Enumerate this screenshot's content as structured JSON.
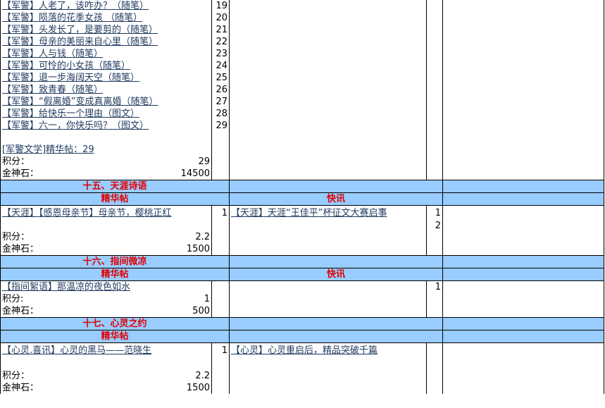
{
  "rows": [
    {
      "a": "【军警】人老了，该咋办？（随笔）",
      "b": 19
    },
    {
      "a": "【军警】陨落的花季女孩 （随笔）",
      "b": 20
    },
    {
      "a": "【军警】头发长了，是要剪的（随笔）",
      "b": 21
    },
    {
      "a": "【军警】母亲的美丽来自心里（随笔）",
      "b": 22
    },
    {
      "a": "【军警】人与钱（随笔）",
      "b": 23
    },
    {
      "a": "【军警】可怜的小女孩（随笔）",
      "b": 24
    },
    {
      "a": "【军警】退一步海阔天空（随笔）",
      "b": 25
    },
    {
      "a": "【军警】致青春（随笔）",
      "b": 26
    },
    {
      "a": "【军警】“假离婚”变成真离婚（随笔）",
      "b": 27
    },
    {
      "a": "【军警】给快乐一个理由（图文）",
      "b": 28
    },
    {
      "a": "【军警】六一，你快乐吗？（图文）",
      "b": 29
    },
    {},
    {
      "note": "[军警文学]精华帖：29"
    },
    {
      "label": "积分：",
      "value": 29
    },
    {
      "label": "金神石：",
      "value": 14500
    },
    {
      "section": "十五、天涯诗语"
    },
    {
      "left": "精华帖",
      "right": "快讯"
    },
    {
      "a": "【天涯】【感恩母亲节】母亲节，樱桃正红",
      "b": 1,
      "c": "【天涯】天涯“王佳平”杯征文大赛启事",
      "d": 1
    },
    {
      "d": 2
    },
    {
      "label": "积分：",
      "value": 2.2
    },
    {
      "label": "金神石：",
      "value": 1500
    },
    {
      "section": "十六、指间微凉"
    },
    {
      "left": "精华帖",
      "right": "快讯"
    },
    {
      "a": "【指间絮语】那温凉的夜色如水",
      "d": 1
    },
    {
      "label": "积分:",
      "value": 1
    },
    {
      "label": "金神石：",
      "value": 500
    },
    {
      "section": "十七、心灵之约"
    },
    {
      "left": "精华帖"
    },
    {
      "a": "【心灵.喜讯】心灵的黑马——范晓生",
      "b": 1,
      "c": "【心灵】心灵重启后，精品突破千篇"
    },
    {},
    {
      "label": "积分：",
      "value": 2.2
    },
    {
      "label": "金神石：",
      "value": 1500
    }
  ]
}
